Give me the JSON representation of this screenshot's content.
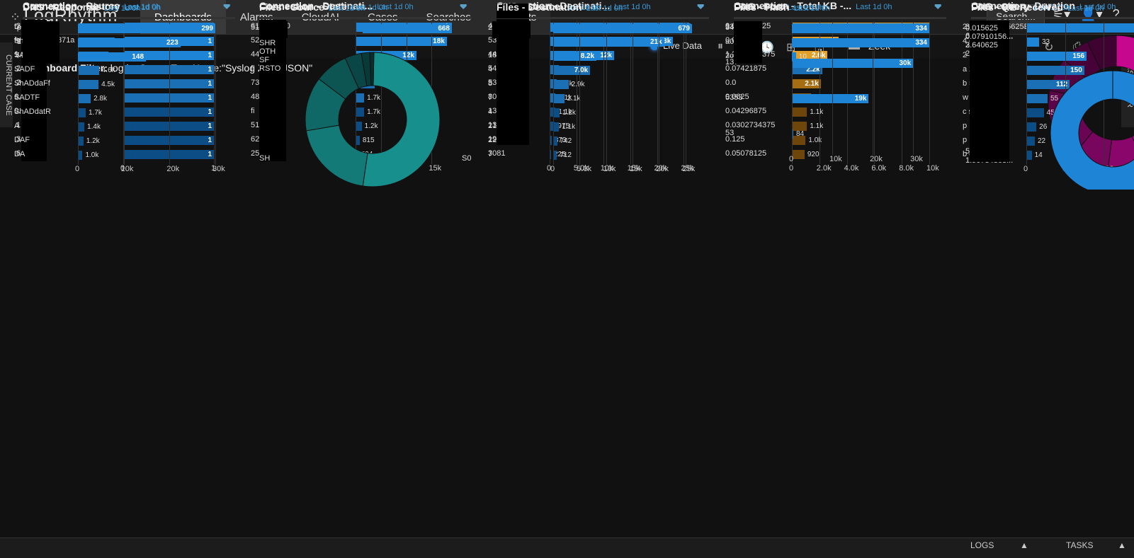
{
  "app": {
    "logo": "LogRhythm",
    "nav": [
      "Dashboards",
      "Alarms",
      "CloudAI",
      "Cases",
      "Searches",
      "Reports"
    ],
    "search_label": "Search..."
  },
  "toolbar": {
    "live": "Live Data",
    "layout": "Zeek"
  },
  "filter": {
    "label": "Dashboard Filter:",
    "value": "log logSourceTypeName:\"Syslog Zeek JSON\""
  },
  "side": {
    "left": "CURRENT CASE",
    "right": "INSPECTOR"
  },
  "bottom": {
    "logs": "LOGS",
    "tasks": "TASKS"
  },
  "colors": {
    "blue": "#1e84d6",
    "darkblue": "#0d4d86",
    "orange": "#e0a02a",
    "teal": "#1a8f8c",
    "magenta": "#c6088f"
  },
  "panels": [
    {
      "title": "Connection - Source",
      "sub": "Last 1d 0h",
      "labels": [
        ".241",
        "fe 3:1ff:feae:871a",
        "1.32",
        ".26",
        ".202",
        "6.90",
        "0.120",
        ".1",
        ".34",
        ".6"
      ],
      "values": [
        "1",
        "1",
        "1",
        "1",
        "1",
        "1",
        "1",
        "1",
        "1",
        "1"
      ],
      "ticks": [
        "0",
        "1"
      ]
    },
    {
      "title": "Connection - Destinati...",
      "sub": "Last 1d 0h",
      "labels": [
        "61",
        "52",
        "44",
        "fi",
        "73",
        "48",
        "fi",
        "51",
        "62",
        "255"
      ],
      "values": [
        "19k",
        "18k",
        "12k",
        "4.9k",
        "3.8k",
        "1.7k",
        "1.7k",
        "1.2k",
        "815",
        "504"
      ],
      "ticks": [
        "0",
        "5.0k",
        "10k",
        "15k"
      ]
    },
    {
      "title": "Connection - Destinati...",
      "sub": "Last 1d 0h",
      "labels": [
        "444",
        "5355",
        "443",
        "547",
        "5353",
        "8014",
        "138",
        "137",
        "1900",
        "3081"
      ],
      "values": [
        "26k",
        "23k",
        "12k",
        "1.7k",
        "1.3k",
        "1.1k",
        "1.1k",
        "975",
        "373",
        "225"
      ],
      "ticks": [
        "0",
        "5.0k",
        "10k",
        "15k",
        "20k",
        "25k"
      ]
    },
    {
      "title": "Connection - Total KB -...",
      "sub": "Last 1d 0h",
      "labels": [
        "0.064453125",
        "0.0546875",
        "1.2177734375",
        "0.07421875",
        "0.0",
        "0.0625",
        "0.04296875",
        "0.0302734375",
        "0.125",
        "0.05078125"
      ],
      "values": [
        "10k",
        "3.4k",
        "2.6k",
        "2.2k",
        "2.1k",
        "1.4k",
        "1.1k",
        "1.1k",
        "1.0k",
        "920"
      ],
      "ticks": [
        "0",
        "2.0k",
        "4.0k",
        "6.0k",
        "8.0k",
        "10k"
      ]
    },
    {
      "title": "Connection - Duration",
      "sub": "Last 1d 0h",
      "labels": [
        "3.814697265625E-6",
        "6.91413879...",
        "2.14576...",
        "2.861...",
        "5.96046...",
        "1.90734863..."
      ],
      "extra": "4.053"
    },
    {
      "title": "Connection - History",
      "sub": "Last 1d 0h",
      "labels": [
        "D",
        "ShADdaR",
        "SAD",
        "SADF",
        "ShADdaFf",
        "SADTF",
        "ShADdatR",
        "A",
        "DAF",
        "DA"
      ],
      "values": [
        "30k",
        "8.0k",
        "6.7k",
        "4.6k",
        "4.5k",
        "2.8k",
        "1.7k",
        "1.4k",
        "1.2k",
        "1.0k"
      ],
      "ticks": [
        "0",
        "10k",
        "20k",
        "30k"
      ]
    },
    {
      "title": "Connection - State",
      "sub": "Last 1d 0h",
      "labels": [
        "RSTOS0",
        "RSTRH",
        "SHR",
        "OTH",
        "SF",
        "RSTO",
        "SH",
        "S0"
      ]
    },
    {
      "title": "DNS - Source",
      "sub": "Last 1d 0h",
      "labels": [
        "",
        "",
        "18",
        "4",
        "8",
        "7",
        "4",
        "21",
        "22",
        "7"
      ],
      "values": [
        "26k",
        "21k",
        "8.2k",
        "7.0k",
        "2.9k",
        "2.1k",
        "1.2k",
        "1.1k",
        "742",
        "712"
      ],
      "ticks": [
        "0",
        "5.0k",
        "10k",
        "15k",
        "20k",
        "25k"
      ]
    },
    {
      "title": "DNS - Port",
      "sub": "Last 1d 0h",
      "labels": [
        "5355",
        "137",
        "5353",
        "53"
      ],
      "values": [
        "34k",
        "30k",
        "19k",
        "84"
      ],
      "ticks": [
        "0",
        "10k",
        "20k",
        "30k"
      ]
    },
    {
      "title": "DNS - Query",
      "sub": "Last 1d 0h",
      "labels": [
        "2 .in...",
        "4 d.7...",
        "2 .in...",
        "a 2.3...",
        "b 5.2...",
        "w",
        "c su...",
        "p",
        "p",
        "b c4...."
      ],
      "values": [
        "",
        "33",
        "156",
        "150",
        "112",
        "55",
        "45",
        "26",
        "22",
        "14"
      ],
      "ticks": [
        "0",
        "100",
        "200",
        "300"
      ]
    },
    {
      "title": "DNS - Response",
      "sub": "Last 1d 0h",
      "labels": [
        "\"p p...",
        "\"1 \"",
        "\"f 04"
      ],
      "values": [
        "299",
        "223",
        "148"
      ]
    },
    {
      "title": "Files - Source",
      "sub": "Last 1d 0h",
      "labels": [
        "51"
      ],
      "values": [
        "668"
      ]
    },
    {
      "title": "Files - Destination",
      "sub": "Last 1d 0h",
      "labels": [
        "2"
      ],
      "values": [
        "679"
      ]
    },
    {
      "title": "Files - Hash",
      "sub": "Last 1d 0h",
      "labels": [
        "345 a49...",
        "a08 e36...",
        "2cc 980"
      ],
      "values": [
        "334",
        "334",
        "10"
      ]
    },
    {
      "title": "Files - KB Received",
      "sub": "Last 1d 0h",
      "labels": [
        "0.015625",
        "0.07910156...",
        "3.640625"
      ]
    }
  ]
}
